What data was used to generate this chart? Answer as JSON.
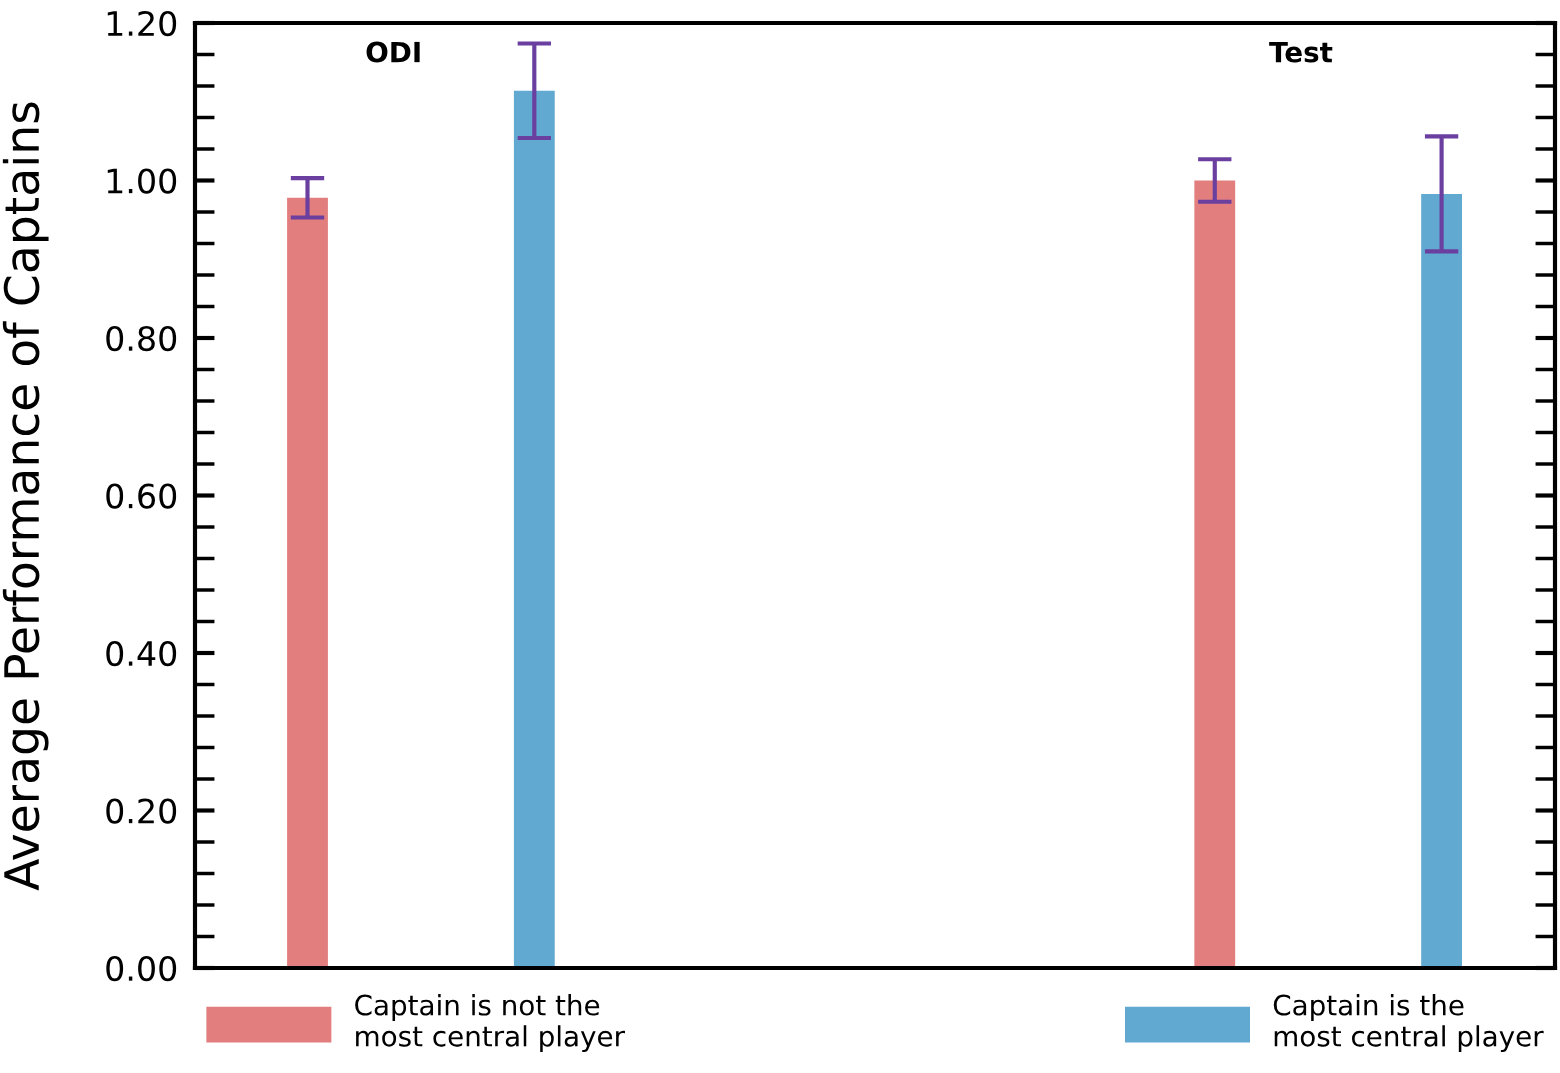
{
  "chart_data": {
    "type": "bar",
    "ylabel": "Average Performance of Captains",
    "categories": [
      "ODI",
      "Test"
    ],
    "series": [
      {
        "name": "Captain is not the\nmost central player",
        "color": "#e27e7e",
        "values": [
          0.978,
          1.0
        ],
        "errors": [
          0.025,
          0.027
        ]
      },
      {
        "name": "Captain is the\nmost central player",
        "color": "#61a9d0",
        "values": [
          1.114,
          0.983
        ],
        "errors": [
          0.06,
          0.073
        ]
      }
    ],
    "ylim": [
      0,
      1.2
    ],
    "yticks": [
      {
        "value": 0,
        "label": "0.00"
      },
      {
        "value": 0.2,
        "label": "0.20"
      },
      {
        "value": 0.4,
        "label": "0.40"
      },
      {
        "value": 0.6,
        "label": "0.60"
      },
      {
        "value": 0.8,
        "label": "0.80"
      },
      {
        "value": 1.0,
        "label": "1.00"
      },
      {
        "value": 1.2,
        "label": "1.20"
      }
    ],
    "grid": false,
    "legend": "bottom"
  }
}
